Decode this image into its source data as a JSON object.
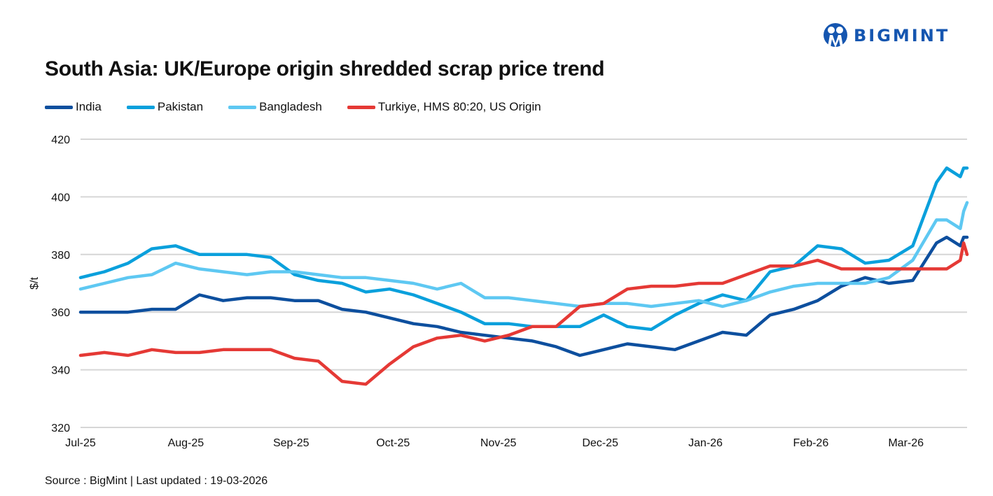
{
  "brand": {
    "logo_text": "BIGMINT",
    "color": "#1556b0"
  },
  "chart_data": {
    "type": "line",
    "title": "South Asia: UK/Europe origin shredded scrap price trend",
    "ylabel": "$/t",
    "xlabel": "",
    "ylim": [
      320,
      420
    ],
    "yticks": [
      320,
      340,
      360,
      380,
      400,
      420
    ],
    "xlim": [
      "2025-07-01",
      "2026-03-19"
    ],
    "xticks": [
      {
        "date": "2025-07-01",
        "label": "Jul-25"
      },
      {
        "date": "2025-08-01",
        "label": "Aug-25"
      },
      {
        "date": "2025-09-01",
        "label": "Sep-25"
      },
      {
        "date": "2025-10-01",
        "label": "Oct-25"
      },
      {
        "date": "2025-11-01",
        "label": "Nov-25"
      },
      {
        "date": "2025-12-01",
        "label": "Dec-25"
      },
      {
        "date": "2026-01-01",
        "label": "Jan-26"
      },
      {
        "date": "2026-02-01",
        "label": "Feb-26"
      },
      {
        "date": "2026-03-01",
        "label": "Mar-26"
      }
    ],
    "grid": "horizontal",
    "legend_position": "top",
    "x": [
      "2025-07-01",
      "2025-07-08",
      "2025-07-15",
      "2025-07-22",
      "2025-07-29",
      "2025-08-05",
      "2025-08-12",
      "2025-08-19",
      "2025-08-26",
      "2025-09-02",
      "2025-09-09",
      "2025-09-16",
      "2025-09-23",
      "2025-09-30",
      "2025-10-07",
      "2025-10-14",
      "2025-10-21",
      "2025-10-28",
      "2025-11-04",
      "2025-11-11",
      "2025-11-18",
      "2025-11-25",
      "2025-12-02",
      "2025-12-09",
      "2025-12-16",
      "2025-12-23",
      "2025-12-30",
      "2026-01-06",
      "2026-01-13",
      "2026-01-20",
      "2026-01-27",
      "2026-02-03",
      "2026-02-10",
      "2026-02-17",
      "2026-02-24",
      "2026-03-03",
      "2026-03-10",
      "2026-03-13",
      "2026-03-17",
      "2026-03-18",
      "2026-03-19"
    ],
    "series": [
      {
        "name": "India",
        "color": "#0d4f9e",
        "values": [
          360,
          360,
          360,
          361,
          361,
          366,
          364,
          365,
          365,
          364,
          364,
          361,
          360,
          358,
          356,
          355,
          353,
          352,
          351,
          350,
          348,
          345,
          347,
          349,
          348,
          347,
          350,
          353,
          352,
          359,
          361,
          364,
          369,
          372,
          370,
          371,
          384,
          386,
          383,
          386,
          386
        ]
      },
      {
        "name": "Pakistan",
        "color": "#0aa0dc",
        "values": [
          372,
          374,
          377,
          382,
          383,
          380,
          380,
          380,
          379,
          373,
          371,
          370,
          367,
          368,
          366,
          363,
          360,
          356,
          356,
          355,
          355,
          355,
          359,
          355,
          354,
          359,
          363,
          366,
          364,
          374,
          376,
          383,
          382,
          377,
          378,
          383,
          405,
          410,
          407,
          410,
          410
        ]
      },
      {
        "name": "Bangladesh",
        "color": "#5ec8f2",
        "values": [
          368,
          370,
          372,
          373,
          377,
          375,
          374,
          373,
          374,
          374,
          373,
          372,
          372,
          371,
          370,
          368,
          370,
          365,
          365,
          364,
          363,
          362,
          363,
          363,
          362,
          363,
          364,
          362,
          364,
          367,
          369,
          370,
          370,
          370,
          372,
          378,
          392,
          392,
          389,
          395,
          398
        ]
      },
      {
        "name": "Turkiye, HMS 80:20, US Origin",
        "color": "#e53935",
        "values": [
          345,
          346,
          345,
          347,
          346,
          346,
          347,
          347,
          347,
          344,
          343,
          336,
          335,
          342,
          348,
          351,
          352,
          350,
          352,
          355,
          355,
          362,
          363,
          368,
          369,
          369,
          370,
          370,
          373,
          376,
          376,
          378,
          375,
          375,
          375,
          375,
          375,
          375,
          378,
          384,
          380
        ]
      }
    ]
  },
  "source": "Source : BigMint | Last updated : 19-03-2026"
}
